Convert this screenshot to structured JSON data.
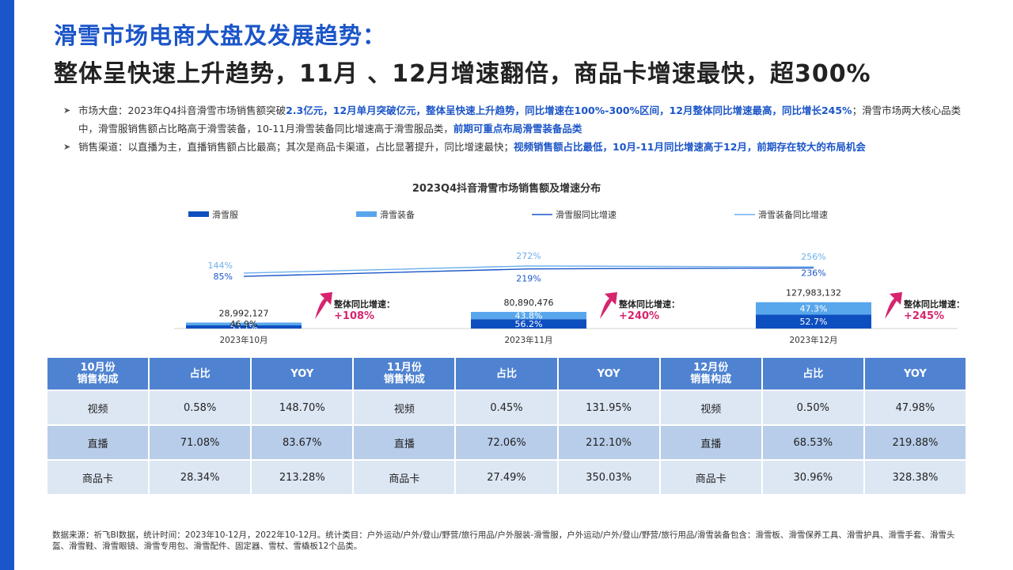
{
  "header": {
    "title_line1": "滑雪市场电商大盘及发展趋势：",
    "title_line2": "整体呈快速上升趋势，11月 、12月增速翻倍，商品卡增速最快，超300%"
  },
  "bullets": [
    {
      "segments": [
        {
          "text": "市场大盘：2023年Q4抖音滑雪市场销售额突破",
          "hl": false
        },
        {
          "text": "2.3亿元，12月单月突破亿元，整体呈快速上升趋势，同比增速在100%-300%区间，12月整体同比增速最高，同比增长245%",
          "hl": true
        },
        {
          "text": "；滑雪市场两大核心品类中，滑雪服销售额占比略高于滑雪装备，10-11月滑雪装备同比增速高于滑雪服品类，",
          "hl": false
        },
        {
          "text": "前期可重点布局滑雪装备品类",
          "hl": true
        }
      ]
    },
    {
      "segments": [
        {
          "text": "销售渠道：以直播为主，直播销售额占比最高；其次是商品卡渠道，占比显著提升，同比增速最快；",
          "hl": false
        },
        {
          "text": "视频销售额占比最低，10月-11月同比增速高于12月，前期存在较大的布局机会",
          "hl": true
        }
      ]
    }
  ],
  "chart_data": {
    "type": "bar",
    "title": "2023Q4抖音滑雪市场销售额及增速分布",
    "categories": [
      "2023年10月",
      "2023年11月",
      "2023年12月"
    ],
    "totals": [
      28992127,
      80890476,
      127983132
    ],
    "total_labels": [
      "28,992,127",
      "80,890,476",
      "127,983,132"
    ],
    "series": [
      {
        "name": "滑雪服",
        "type": "bar",
        "share": [
          53.1,
          56.2,
          52.7
        ],
        "labels": [
          "53.1%",
          "56.2%",
          "52.7%"
        ],
        "color": "#0e4fc0"
      },
      {
        "name": "滑雪装备",
        "type": "bar",
        "share": [
          46.9,
          43.8,
          47.3
        ],
        "labels": [
          "46.9%",
          "43.8%",
          "47.3%"
        ],
        "color": "#58a6ec"
      },
      {
        "name": "滑雪服同比增速",
        "type": "line",
        "values": [
          85,
          219,
          236
        ],
        "labels": [
          "85%",
          "219%",
          "236%"
        ],
        "color": "#1a56c9"
      },
      {
        "name": "滑雪装备同比增速",
        "type": "line",
        "values": [
          144,
          272,
          256
        ],
        "labels": [
          "144%",
          "272%",
          "256%"
        ],
        "color": "#6fb0ec"
      }
    ],
    "annotation_label": "整体同比增速：",
    "overall_growth": [
      "+108%",
      "+240%",
      "+245%"
    ],
    "ylim": [
      0,
      135000000
    ],
    "grid": false,
    "legend": "top"
  },
  "table": {
    "groups": [
      {
        "header_line1": "10月份",
        "header_line2": "销售构成",
        "col_share": "占比",
        "col_yoy": "YOY",
        "rows": [
          {
            "channel": "视频",
            "share": "0.58%",
            "yoy": "148.70%"
          },
          {
            "channel": "直播",
            "share": "71.08%",
            "yoy": "83.67%"
          },
          {
            "channel": "商品卡",
            "share": "28.34%",
            "yoy": "213.28%"
          }
        ]
      },
      {
        "header_line1": "11月份",
        "header_line2": "销售构成",
        "col_share": "占比",
        "col_yoy": "YOY",
        "rows": [
          {
            "channel": "视频",
            "share": "0.45%",
            "yoy": "131.95%"
          },
          {
            "channel": "直播",
            "share": "72.06%",
            "yoy": "212.10%"
          },
          {
            "channel": "商品卡",
            "share": "27.49%",
            "yoy": "350.03%"
          }
        ]
      },
      {
        "header_line1": "12月份",
        "header_line2": "销售构成",
        "col_share": "占比",
        "col_yoy": "YOY",
        "rows": [
          {
            "channel": "视频",
            "share": "0.50%",
            "yoy": "47.98%"
          },
          {
            "channel": "直播",
            "share": "68.53%",
            "yoy": "219.88%"
          },
          {
            "channel": "商品卡",
            "share": "30.96%",
            "yoy": "328.38%"
          }
        ]
      }
    ]
  },
  "footnote": "数据来源：祈飞BI数据，统计时间：2023年10-12月，2022年10-12月。统计类目：户外运动/户外/登山/野营/旅行用品/户外服装-滑雪服，户外运动/户外/登山/野营/旅行用品/滑雪装备包含：滑雪板、滑雪保养工具、滑雪护具、滑雪手套、滑雪头盔、滑雪鞋、滑雪眼镜、滑雪专用包、滑雪配件、固定器、雪杖、雪橇板12个品类。",
  "colors": {
    "accent": "#1b55c8",
    "growth_pink": "#d6246e",
    "table_header": "#4f83d1"
  }
}
